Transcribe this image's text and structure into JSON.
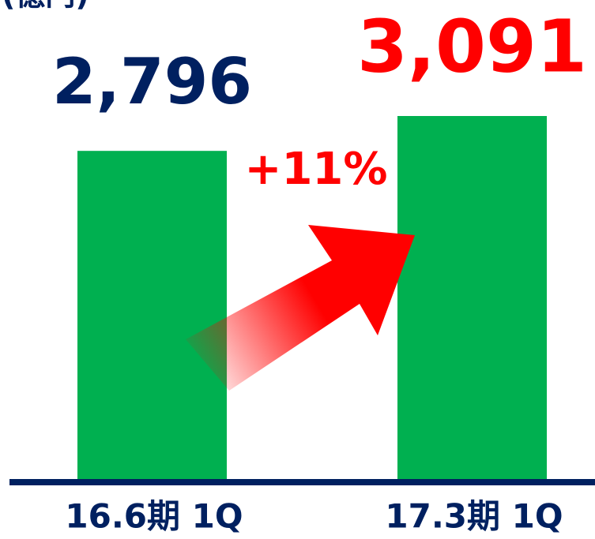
{
  "chart_data": {
    "type": "bar",
    "unit": "(億円)",
    "categories": [
      "16.6期 1Q",
      "17.3期 1Q"
    ],
    "values": [
      2796,
      3091
    ],
    "value_labels": [
      "2,796",
      "3,091"
    ],
    "label_colors": [
      "#002060",
      "#ff0000"
    ],
    "color": "#00b050",
    "annotation": "+11%"
  }
}
